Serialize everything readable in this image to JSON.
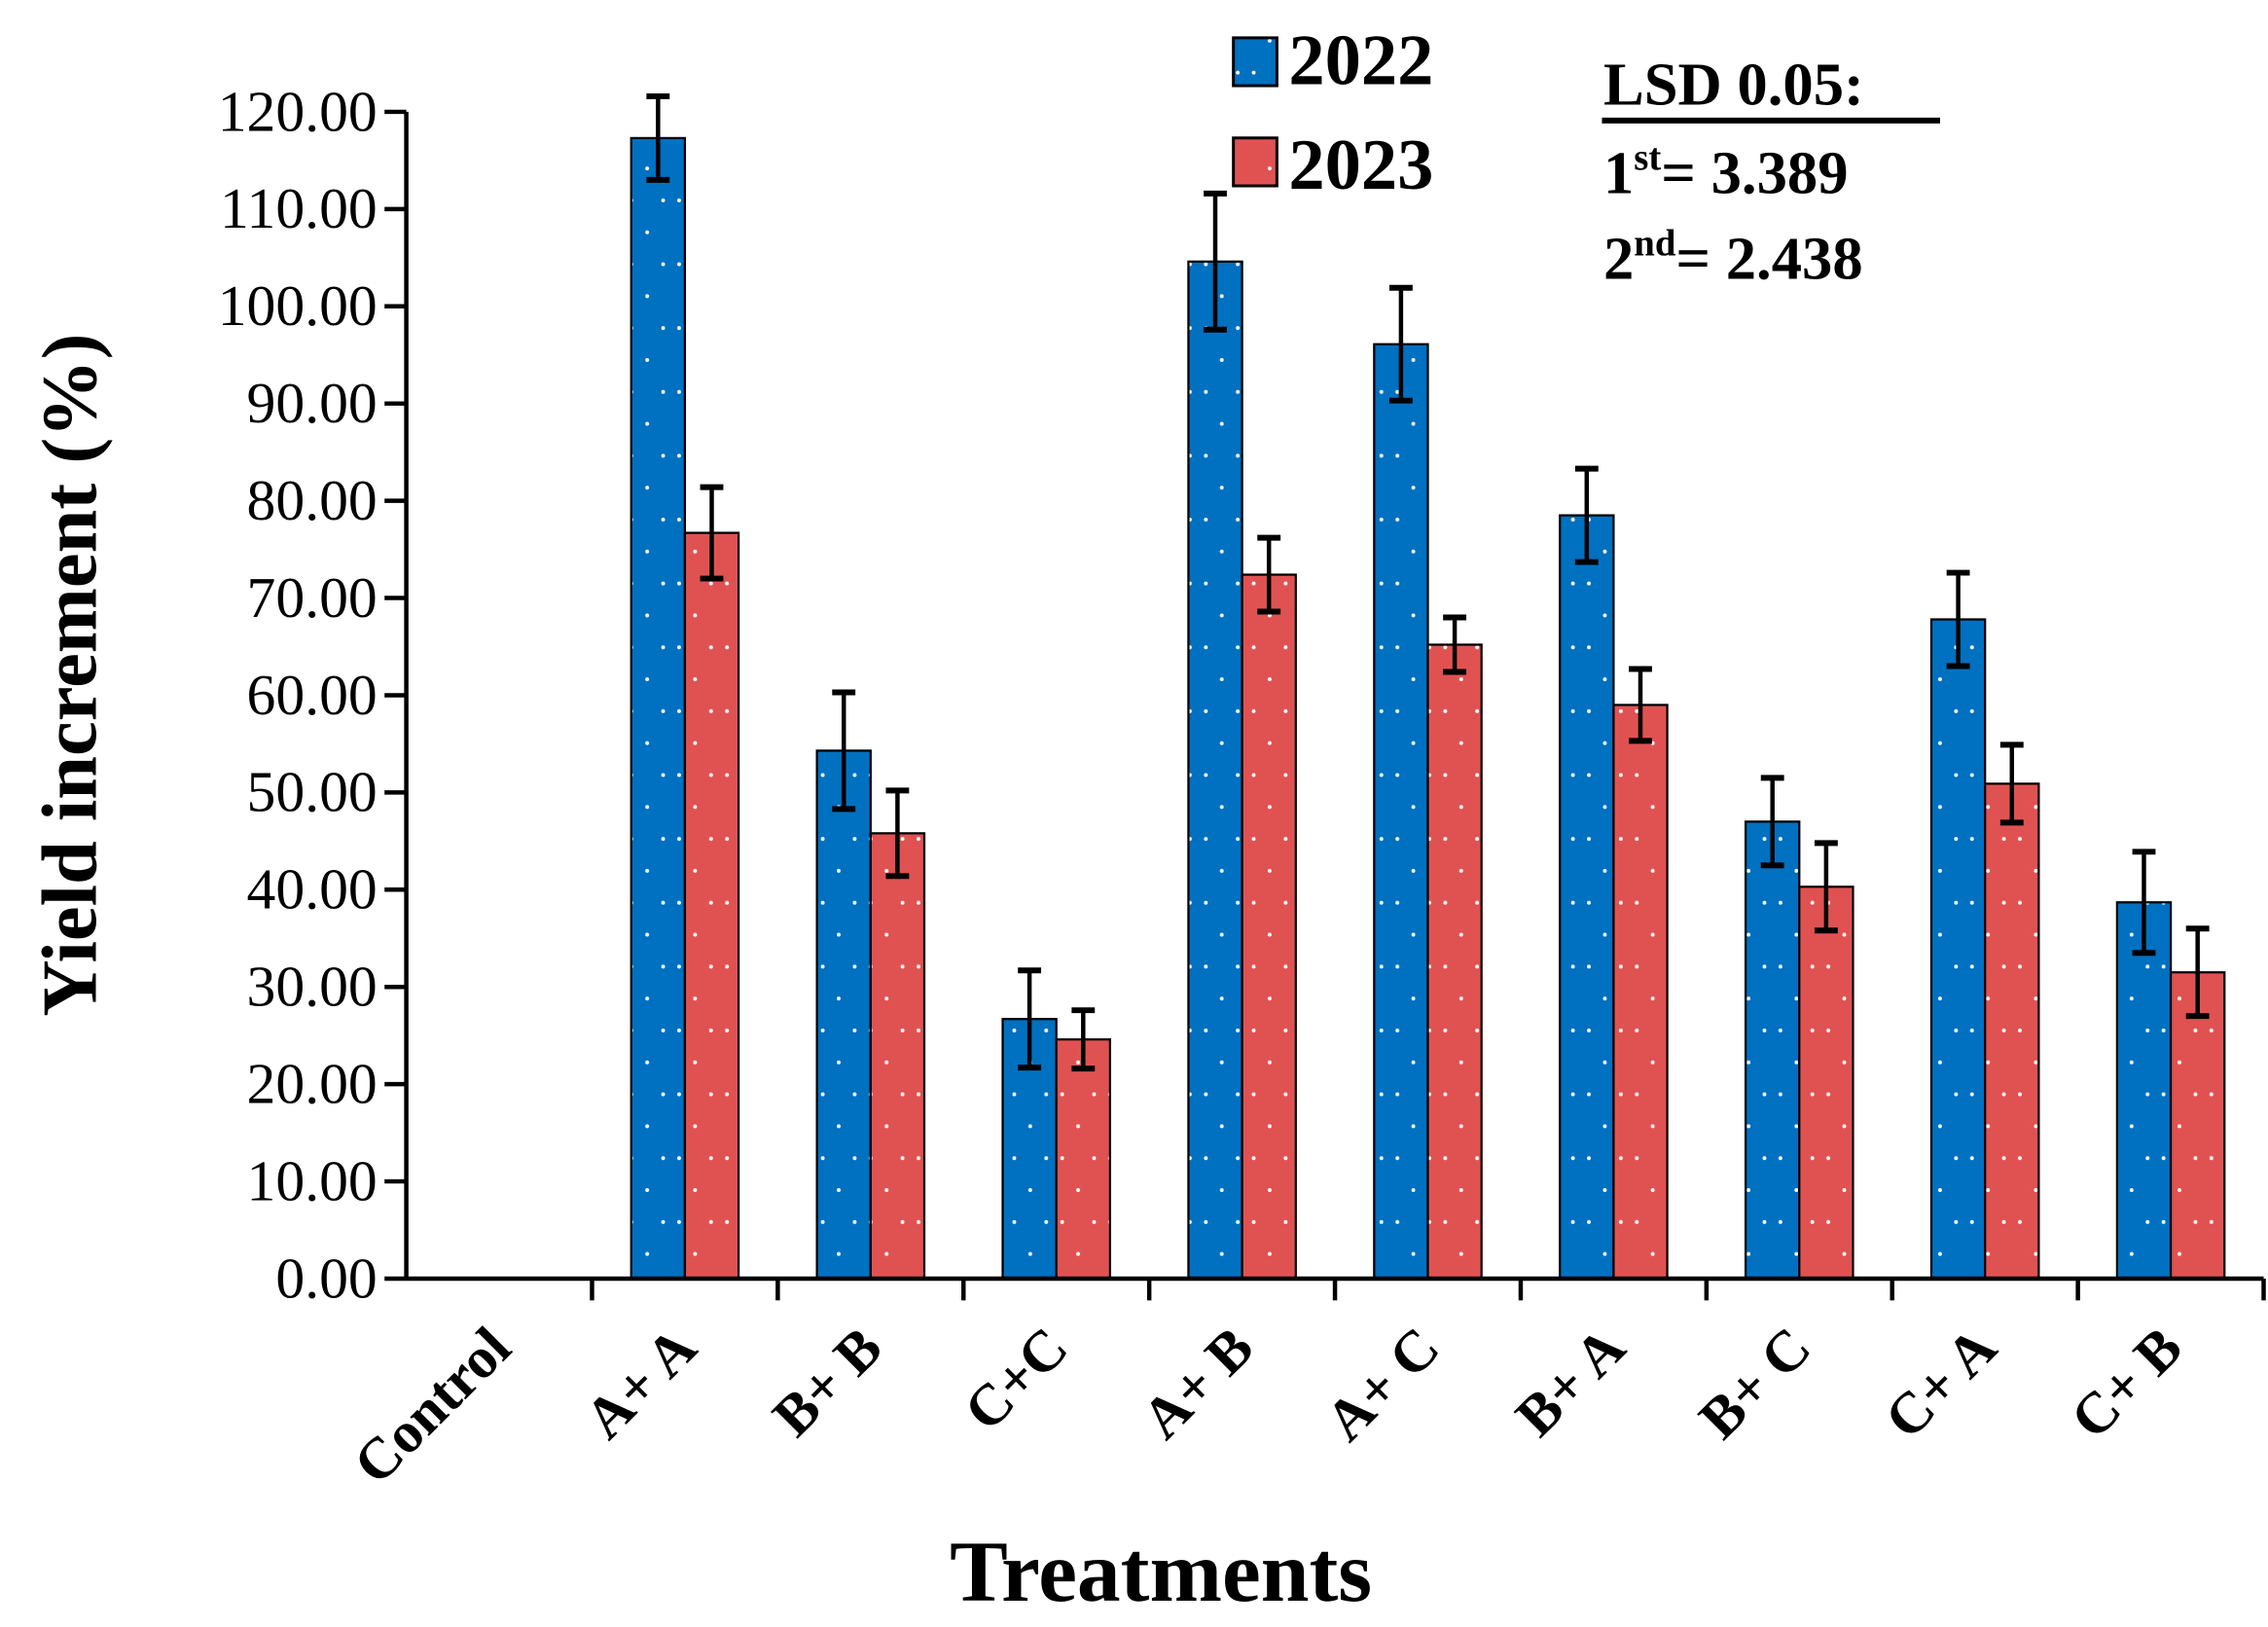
{
  "chart_data": {
    "type": "bar",
    "title": "",
    "xlabel": "Treatments",
    "ylabel": "Yield increment (%)",
    "ylim": [
      0,
      120
    ],
    "yticks": [
      "0.00",
      "10.00",
      "20.00",
      "30.00",
      "40.00",
      "50.00",
      "60.00",
      "70.00",
      "80.00",
      "90.00",
      "100.00",
      "110.00",
      "120.00"
    ],
    "grid": false,
    "legend_position": "top-center",
    "categories": [
      "Control",
      "A+ A",
      "B+ B",
      "C+C",
      "A+ B",
      "A+ C",
      "B+ A",
      "B+ C",
      "C+ A",
      "C+ B"
    ],
    "series": [
      {
        "name": "2022",
        "color": "#0070C0",
        "values": [
          0,
          117.3,
          54.3,
          26.7,
          104.6,
          96.1,
          78.5,
          47.0,
          67.8,
          38.7
        ],
        "errors": [
          0,
          4.3,
          6.0,
          5.0,
          7.0,
          5.8,
          4.8,
          4.5,
          4.8,
          5.2
        ]
      },
      {
        "name": "2023",
        "color": "#E05252",
        "values": [
          0,
          76.7,
          45.8,
          24.6,
          72.4,
          65.2,
          59.0,
          40.3,
          50.9,
          31.5
        ],
        "errors": [
          0,
          4.7,
          4.4,
          3.0,
          3.8,
          2.8,
          3.7,
          4.5,
          4.0,
          4.5
        ]
      }
    ],
    "annotation": {
      "title": "LSD 0.05:",
      "lines": [
        {
          "base": "1",
          "sup": "st",
          "value": "= 3.389"
        },
        {
          "base": "2",
          "sup": "nd",
          "value": "= 2.438"
        }
      ]
    }
  }
}
